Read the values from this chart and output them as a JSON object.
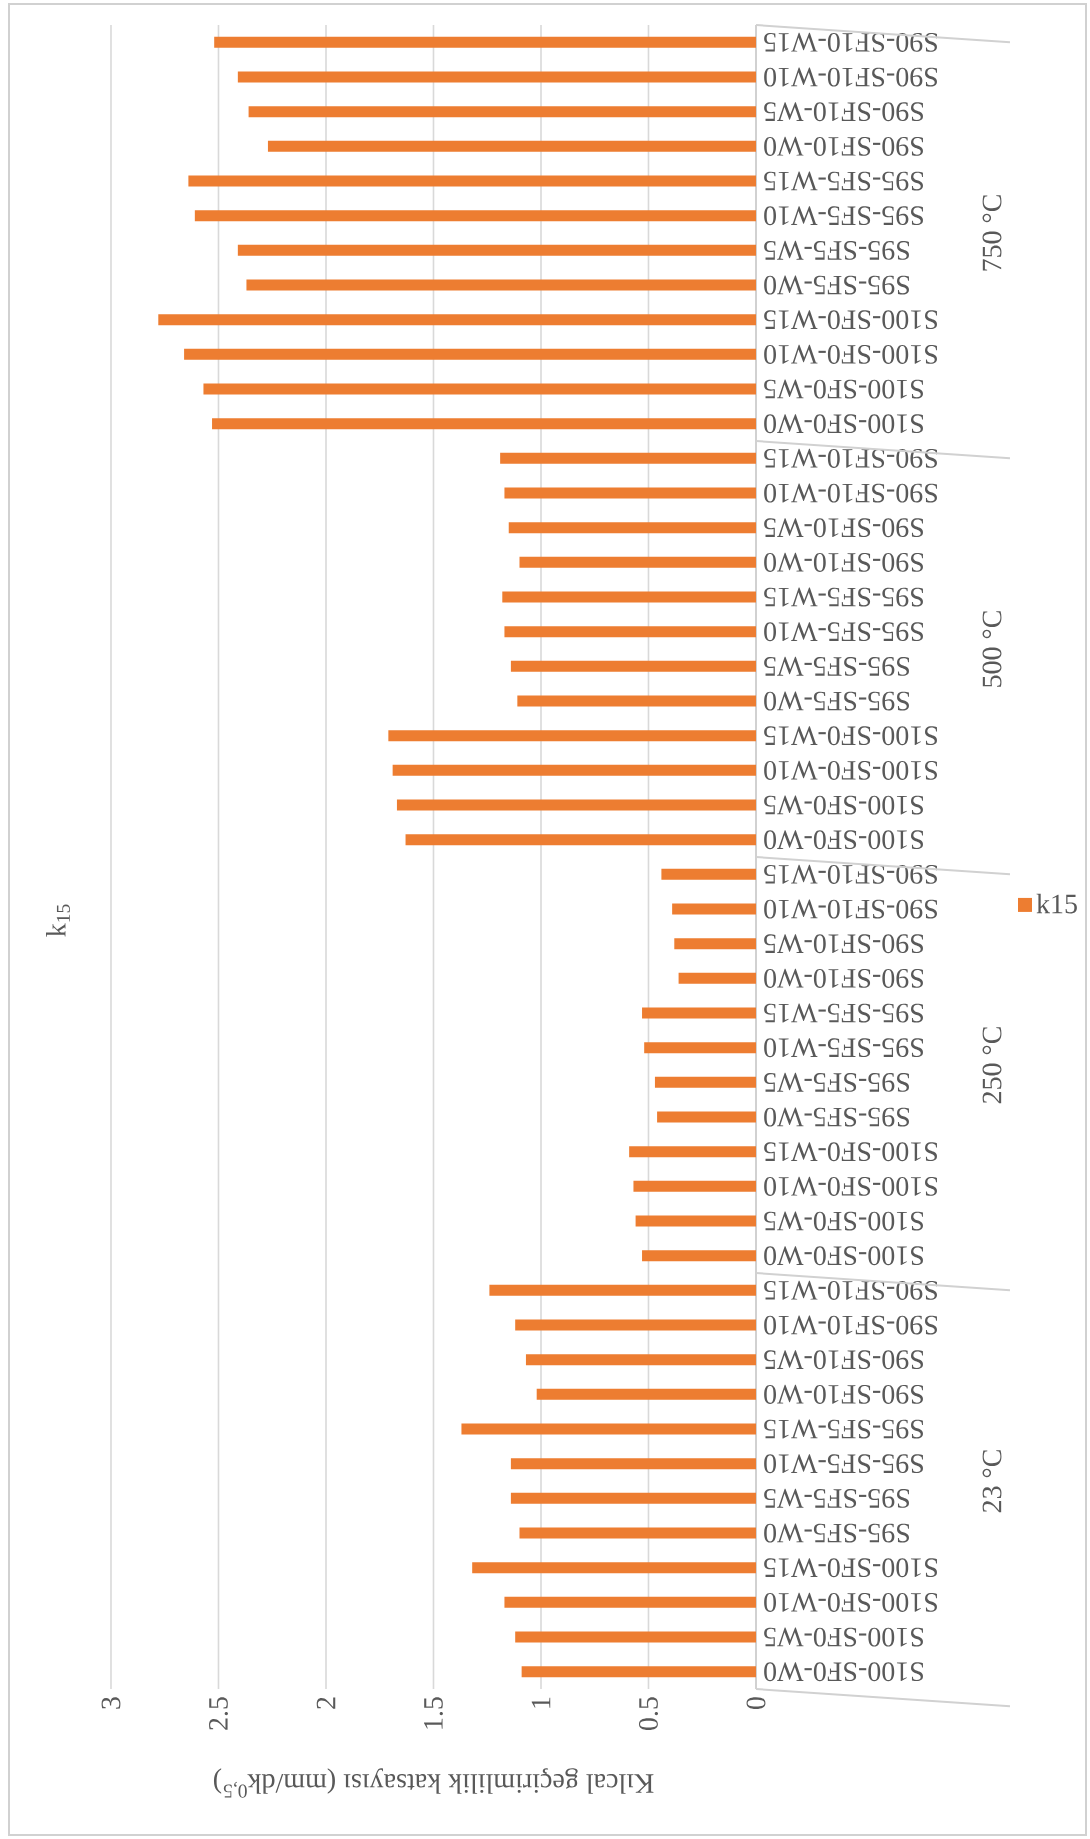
{
  "chart_data": {
    "type": "bar",
    "orientation": "horizontal",
    "title": "k$_{15}$",
    "xlabel": "Kılcal geçirimlilik katsayısı (mm/dk$^{0,5}$)",
    "categories": [
      "S90-SF10-W15",
      "S90-SF10-W10",
      "S90-SF10-W5",
      "S90-SF10-W0",
      "S95-SF5-W15",
      "S95-SF5-W10",
      "S95-SF5-W5",
      "S95-SF5-W0",
      "S100-SF0-W15",
      "S100-SF0-W10",
      "S100-SF0-W5",
      "S100-SF0-W0",
      "S90-SF10-W15",
      "S90-SF10-W10",
      "S90-SF10-W5",
      "S90-SF10-W0",
      "S95-SF5-W15",
      "S95-SF5-W10",
      "S95-SF5-W5",
      "S95-SF5-W0",
      "S100-SF0-W15",
      "S100-SF0-W10",
      "S100-SF0-W5",
      "S100-SF0-W0",
      "S90-SF10-W15",
      "S90-SF10-W10",
      "S90-SF10-W5",
      "S90-SF10-W0",
      "S95-SF5-W15",
      "S95-SF5-W10",
      "S95-SF5-W5",
      "S95-SF5-W0",
      "S100-SF0-W15",
      "S100-SF0-W10",
      "S100-SF0-W5",
      "S100-SF0-W0",
      "S90-SF10-W15",
      "S90-SF10-W10",
      "S90-SF10-W5",
      "S90-SF10-W0",
      "S95-SF5-W15",
      "S95-SF5-W10",
      "S95-SF5-W5",
      "S95-SF5-W0",
      "S100-SF0-W15",
      "S100-SF0-W10",
      "S100-SF0-W5",
      "S100-SF0-W0"
    ],
    "series": [
      {
        "name": "k15",
        "color": "#ed7d31",
        "values": [
          2.52,
          2.41,
          2.36,
          2.27,
          2.64,
          2.61,
          2.41,
          2.37,
          2.78,
          2.66,
          2.57,
          2.53,
          1.19,
          1.17,
          1.15,
          1.1,
          1.18,
          1.17,
          1.14,
          1.11,
          1.71,
          1.69,
          1.67,
          1.63,
          0.44,
          0.39,
          0.38,
          0.36,
          0.53,
          0.52,
          0.47,
          0.46,
          0.59,
          0.57,
          0.56,
          0.53,
          1.24,
          1.12,
          1.07,
          1.02,
          1.37,
          1.14,
          1.14,
          1.1,
          1.32,
          1.17,
          1.12,
          1.09
        ]
      }
    ],
    "xlim": [
      3,
      0
    ],
    "xticks": [
      0,
      0.5,
      1,
      1.5,
      2,
      2.5,
      3
    ],
    "grid": "x",
    "legend": "right",
    "annotations": [
      "750 °C",
      "500 °C",
      "250 °C",
      "23 °C"
    ]
  }
}
